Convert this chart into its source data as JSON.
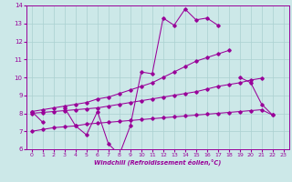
{
  "xlabel": "Windchill (Refroidissement éolien,°C)",
  "x_values": [
    0,
    1,
    2,
    3,
    4,
    5,
    6,
    7,
    8,
    9,
    10,
    11,
    12,
    13,
    14,
    15,
    16,
    17,
    18,
    19,
    20,
    21,
    22,
    23
  ],
  "wc": [
    8.1,
    7.5,
    null,
    8.3,
    7.3,
    6.8,
    8.1,
    6.3,
    5.7,
    7.3,
    10.3,
    10.2,
    13.3,
    12.9,
    13.8,
    13.2,
    13.3,
    12.9,
    null,
    10.0,
    9.7,
    8.5,
    7.9,
    null
  ],
  "t_max": [
    8.1,
    8.2,
    8.3,
    8.4,
    8.5,
    8.6,
    8.8,
    8.9,
    9.1,
    9.3,
    9.5,
    9.7,
    10.0,
    10.3,
    10.6,
    10.9,
    11.1,
    11.3,
    11.5,
    null,
    null,
    null,
    null,
    null
  ],
  "t_mid": [
    8.0,
    8.05,
    8.1,
    8.15,
    8.2,
    8.25,
    8.3,
    8.4,
    8.5,
    8.6,
    8.7,
    8.8,
    8.9,
    9.0,
    9.1,
    9.2,
    9.35,
    9.5,
    9.6,
    9.7,
    9.85,
    9.95,
    null,
    null
  ],
  "t_min": [
    7.0,
    7.1,
    7.2,
    7.25,
    7.3,
    7.4,
    7.45,
    7.5,
    7.55,
    7.6,
    7.65,
    7.7,
    7.75,
    7.8,
    7.85,
    7.9,
    7.95,
    8.0,
    8.05,
    8.1,
    8.15,
    8.2,
    7.9,
    null
  ],
  "color": "#990099",
  "bg_color": "#cce8e8",
  "grid_color": "#aad0d0",
  "ylim": [
    6,
    14
  ],
  "xlim": [
    -0.5,
    23.5
  ],
  "yticks": [
    6,
    7,
    8,
    9,
    10,
    11,
    12,
    13,
    14
  ],
  "xticks": [
    0,
    1,
    2,
    3,
    4,
    5,
    6,
    7,
    8,
    9,
    10,
    11,
    12,
    13,
    14,
    15,
    16,
    17,
    18,
    19,
    20,
    21,
    22,
    23
  ]
}
